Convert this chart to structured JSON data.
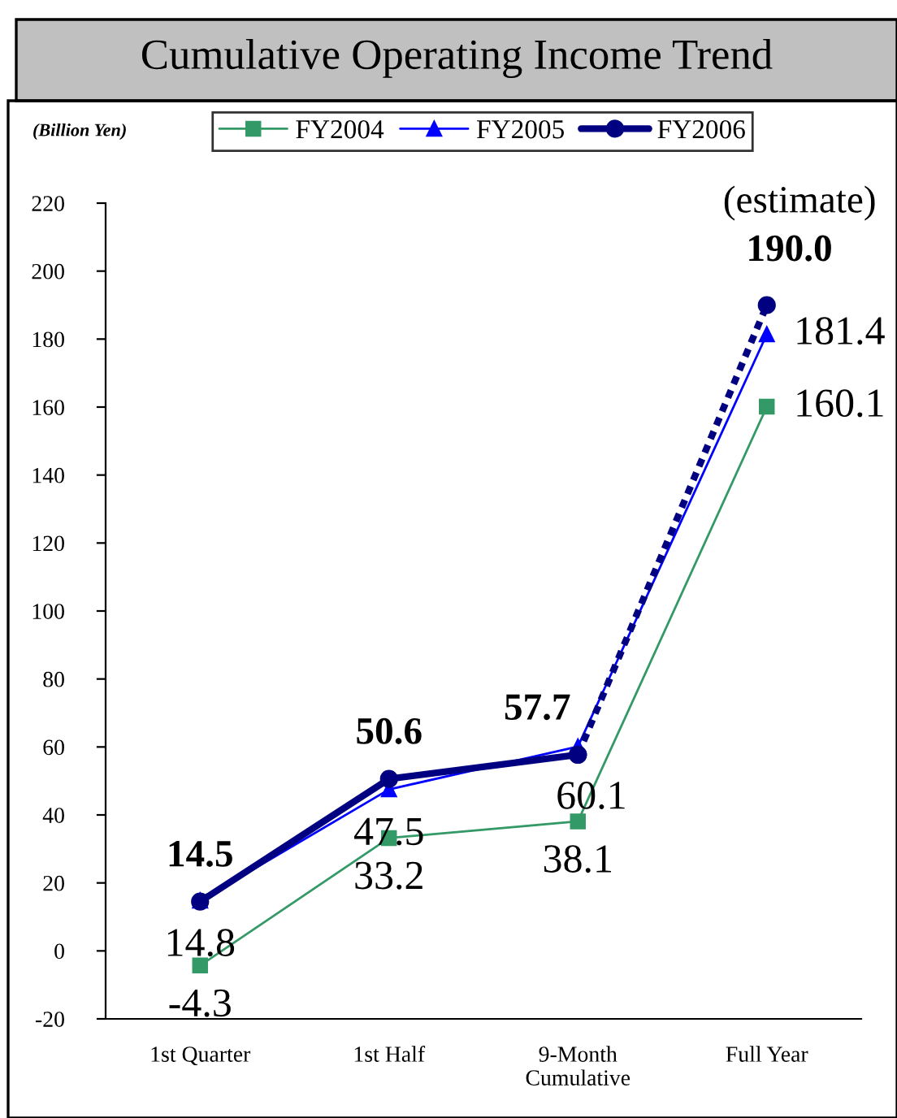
{
  "chart_data": {
    "type": "line",
    "title": "Cumulative Operating Income Trend",
    "ylabel": "(Billion Yen)",
    "categories": [
      "1st Quarter",
      "1st Half",
      "9-Month\nCumulative",
      "Full Year"
    ],
    "series": [
      {
        "name": "FY2004",
        "color": "#339966",
        "marker": "square",
        "line_style": "solid",
        "values": [
          -4.3,
          33.2,
          38.1,
          160.1
        ],
        "value_labels": [
          "-4.3",
          "33.2",
          "38.1",
          "160.1"
        ]
      },
      {
        "name": "FY2005",
        "color": "#0000ff",
        "marker": "triangle",
        "line_style": "solid",
        "values": [
          14.8,
          47.5,
          60.1,
          181.4
        ],
        "value_labels": [
          "14.8",
          "47.5",
          "60.1",
          "181.4"
        ]
      },
      {
        "name": "FY2006",
        "color": "#000080",
        "marker": "circle",
        "line_style": "solid",
        "values": [
          14.5,
          50.6,
          57.7,
          null
        ],
        "value_labels": [
          "14.5",
          "50.6",
          "57.7",
          null
        ]
      },
      {
        "color": "#000080",
        "marker": "circle",
        "line_style": "dashed",
        "values": [
          null,
          null,
          57.7,
          190.0
        ],
        "value_labels": [
          null,
          null,
          null,
          "190.0"
        ]
      }
    ],
    "annotations": [
      "(estimate)"
    ],
    "ylim": [
      -20,
      220
    ],
    "yticks": [
      -20,
      0,
      20,
      40,
      60,
      80,
      100,
      120,
      140,
      160,
      180,
      200,
      220
    ],
    "grid": false,
    "legend": "top"
  }
}
